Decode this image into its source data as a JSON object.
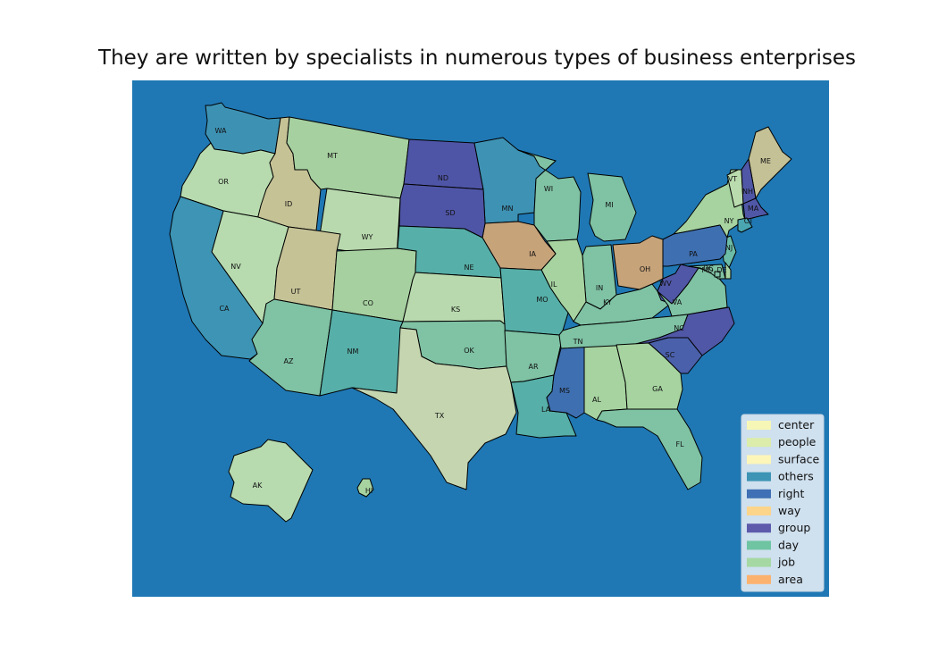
{
  "title": "They are written by specialists in numerous types of business enterprises",
  "colors": {
    "ocean": "#1f78b4",
    "border": "#000000"
  },
  "legend": [
    {
      "label": "center",
      "color": "#f6f7b6"
    },
    {
      "label": "people",
      "color": "#dcedab"
    },
    {
      "label": "surface",
      "color": "#fdf6b9"
    },
    {
      "label": "others",
      "color": "#3d94b4"
    },
    {
      "label": "right",
      "color": "#3f6fb4"
    },
    {
      "label": "way",
      "color": "#fdd58a"
    },
    {
      "label": "group",
      "color": "#5d5aac"
    },
    {
      "label": "day",
      "color": "#6fc4a2"
    },
    {
      "label": "job",
      "color": "#a6d8a3"
    },
    {
      "label": "area",
      "color": "#fcb26f"
    }
  ],
  "states": [
    {
      "abbr": "WA",
      "fill": "#3d92b4"
    },
    {
      "abbr": "OR",
      "fill": "#b7dbaf"
    },
    {
      "abbr": "ID",
      "fill": "#c5c296"
    },
    {
      "abbr": "MT",
      "fill": "#a6d0a0"
    },
    {
      "abbr": "ND",
      "fill": "#4f55a6"
    },
    {
      "abbr": "MN",
      "fill": "#3e92b4"
    },
    {
      "abbr": "WI",
      "fill": "#80c2a4"
    },
    {
      "abbr": "MI",
      "fill": "#7fc2a4"
    },
    {
      "abbr": "NY",
      "fill": "#a6d3a0"
    },
    {
      "abbr": "VT",
      "fill": "#b9dbad"
    },
    {
      "abbr": "ME",
      "fill": "#c4c196"
    },
    {
      "abbr": "NH",
      "fill": "#5057a6"
    },
    {
      "abbr": "MA",
      "fill": "#5057a6"
    },
    {
      "abbr": "CT",
      "fill": "#4aa6b0"
    },
    {
      "abbr": "NJ",
      "fill": "#6cbca7"
    },
    {
      "abbr": "PA",
      "fill": "#3e6fb1"
    },
    {
      "abbr": "OH",
      "fill": "#c7a37a"
    },
    {
      "abbr": "IN",
      "fill": "#7fc2a4"
    },
    {
      "abbr": "IL",
      "fill": "#a6d3a0"
    },
    {
      "abbr": "IA",
      "fill": "#c7a37a"
    },
    {
      "abbr": "SD",
      "fill": "#4f55a6"
    },
    {
      "abbr": "WY",
      "fill": "#b8d9ae"
    },
    {
      "abbr": "NV",
      "fill": "#b7dbaf"
    },
    {
      "abbr": "CA",
      "fill": "#3d94b4"
    },
    {
      "abbr": "UT",
      "fill": "#c5c296"
    },
    {
      "abbr": "CO",
      "fill": "#a6d0a0"
    },
    {
      "abbr": "NE",
      "fill": "#56afa8"
    },
    {
      "abbr": "KS",
      "fill": "#b8d9ae"
    },
    {
      "abbr": "MO",
      "fill": "#56afa8"
    },
    {
      "abbr": "KY",
      "fill": "#7fc2a4"
    },
    {
      "abbr": "WV",
      "fill": "#5057a6"
    },
    {
      "abbr": "VA",
      "fill": "#7fc2a4"
    },
    {
      "abbr": "MD",
      "fill": "#7fc2a4"
    },
    {
      "abbr": "DE",
      "fill": "#a6d3a0"
    },
    {
      "abbr": "DC",
      "fill": "#7fc2a4"
    },
    {
      "abbr": "AZ",
      "fill": "#7fc2a4"
    },
    {
      "abbr": "NM",
      "fill": "#56afa8"
    },
    {
      "abbr": "OK",
      "fill": "#7fc2a4"
    },
    {
      "abbr": "TX",
      "fill": "#c4d5b0"
    },
    {
      "abbr": "AR",
      "fill": "#7fc2a4"
    },
    {
      "abbr": "LA",
      "fill": "#56afa8"
    },
    {
      "abbr": "MS",
      "fill": "#3e6fb1"
    },
    {
      "abbr": "AL",
      "fill": "#a6d3a0"
    },
    {
      "abbr": "TN",
      "fill": "#7fc2a4"
    },
    {
      "abbr": "NC",
      "fill": "#5057a6"
    },
    {
      "abbr": "SC",
      "fill": "#4a60ab"
    },
    {
      "abbr": "GA",
      "fill": "#a6d3a0"
    },
    {
      "abbr": "FL",
      "fill": "#7fc2a4"
    },
    {
      "abbr": "AK",
      "fill": "#b7dbaf"
    },
    {
      "abbr": "HI",
      "fill": "#a6d3a0"
    }
  ]
}
